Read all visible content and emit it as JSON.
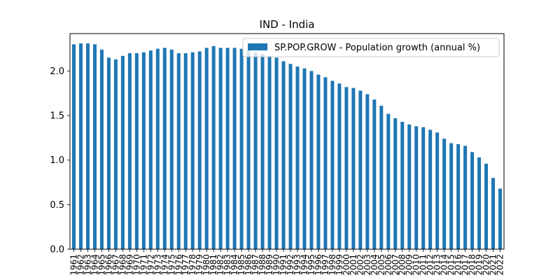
{
  "chart_data": {
    "type": "bar",
    "title": "IND - India",
    "xlabel": "",
    "ylabel": "",
    "ylim": [
      0,
      2.42
    ],
    "yticks": [
      "0.0",
      "0.5",
      "1.0",
      "1.5",
      "2.0"
    ],
    "grid": false,
    "legend_position": "top-right",
    "bar_color": "#1f77b4",
    "categories": [
      "1961",
      "1962",
      "1963",
      "1964",
      "1965",
      "1966",
      "1967",
      "1968",
      "1969",
      "1970",
      "1971",
      "1972",
      "1973",
      "1974",
      "1975",
      "1976",
      "1977",
      "1978",
      "1979",
      "1980",
      "1981",
      "1982",
      "1983",
      "1984",
      "1985",
      "1986",
      "1987",
      "1988",
      "1989",
      "1990",
      "1991",
      "1992",
      "1993",
      "1994",
      "1995",
      "1996",
      "1997",
      "1998",
      "1999",
      "2000",
      "2001",
      "2002",
      "2003",
      "2004",
      "2005",
      "2006",
      "2007",
      "2008",
      "2009",
      "2010",
      "2011",
      "2012",
      "2013",
      "2014",
      "2015",
      "2016",
      "2017",
      "2018",
      "2019",
      "2020",
      "2021",
      "2022"
    ],
    "series": [
      {
        "name": "SP.POP.GROW - Population growth (annual %)",
        "values": [
          2.3,
          2.31,
          2.31,
          2.3,
          2.24,
          2.15,
          2.13,
          2.17,
          2.2,
          2.2,
          2.21,
          2.23,
          2.25,
          2.26,
          2.24,
          2.2,
          2.2,
          2.21,
          2.22,
          2.26,
          2.28,
          2.26,
          2.26,
          2.26,
          2.25,
          2.23,
          2.21,
          2.19,
          2.17,
          2.15,
          2.11,
          2.08,
          2.05,
          2.03,
          2.0,
          1.96,
          1.93,
          1.89,
          1.86,
          1.82,
          1.81,
          1.78,
          1.74,
          1.68,
          1.61,
          1.52,
          1.47,
          1.43,
          1.4,
          1.38,
          1.37,
          1.34,
          1.31,
          1.24,
          1.19,
          1.18,
          1.16,
          1.09,
          1.03,
          0.96,
          0.8,
          0.68
        ]
      }
    ]
  }
}
